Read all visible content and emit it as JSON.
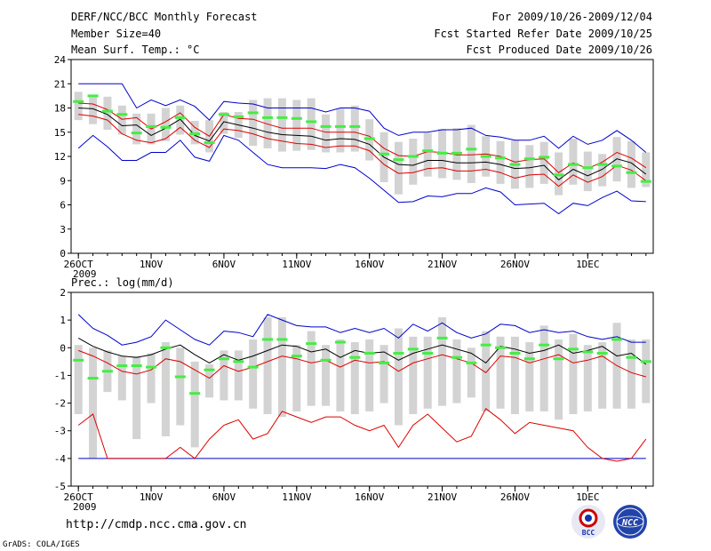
{
  "header": {
    "left": [
      "DERF/NCC/BCC Monthly Forecast",
      "Member Size=40",
      "Mean Surf. Temp.: °C"
    ],
    "right": [
      "For 2009/10/26-2009/12/04",
      "Fcst Started Refer Date 2009/10/25",
      "Fcst Produced Date 2009/10/26"
    ]
  },
  "footer": {
    "url": "http://cmdp.ncc.cma.gov.cn",
    "credit": "GrADS: COLA/IGES"
  },
  "logos": {
    "left": "BCC",
    "right": "NCC"
  },
  "colors": {
    "box": "#d3d3d3",
    "median": "#44ee44",
    "mean": "#000000",
    "spread": "#dd0000",
    "extreme": "#0000cc"
  },
  "chart_data": [
    {
      "type": "box",
      "title": "Mean Surf. Temp.: °C",
      "ylim": [
        0,
        24
      ],
      "yticks": [
        0,
        3,
        6,
        9,
        12,
        15,
        18,
        21,
        24
      ],
      "x_tick_labels": [
        "26OCT",
        "1NOV",
        "6NOV",
        "11NOV",
        "16NOV",
        "21NOV",
        "26NOV",
        "1DEC"
      ],
      "x_tick_days": [
        0,
        5,
        10,
        15,
        20,
        25,
        30,
        35
      ],
      "year_label": "2009",
      "days": 40,
      "mean": [
        18.0,
        17.9,
        17.2,
        15.8,
        15.9,
        14.6,
        15.5,
        16.6,
        14.6,
        13.9,
        16.3,
        15.9,
        15.5,
        15.0,
        14.7,
        14.6,
        14.5,
        14.0,
        14.2,
        14.1,
        13.5,
        11.9,
        11.0,
        10.9,
        11.5,
        11.5,
        11.2,
        11.2,
        11.3,
        11.0,
        10.5,
        10.6,
        10.9,
        9.1,
        10.4,
        9.6,
        10.4,
        11.7,
        11.2,
        9.8
      ],
      "median": [
        18.8,
        19.5,
        17.6,
        17.2,
        14.9,
        15.7,
        15.6,
        16.8,
        14.8,
        13.7,
        17.2,
        16.9,
        17.4,
        16.8,
        16.8,
        16.7,
        16.3,
        15.7,
        15.7,
        15.7,
        14.2,
        12.3,
        11.6,
        12.0,
        12.7,
        12.4,
        12.4,
        12.9,
        12.0,
        11.8,
        11.0,
        11.7,
        11.9,
        9.7,
        11.0,
        10.6,
        11.0,
        10.8,
        10.0,
        8.9
      ],
      "upper": [
        18.6,
        18.5,
        17.8,
        16.6,
        16.8,
        15.4,
        16.3,
        17.4,
        15.6,
        14.5,
        17.2,
        16.7,
        16.6,
        16.0,
        15.5,
        15.5,
        15.5,
        15.0,
        15.0,
        15.0,
        14.5,
        13.0,
        12.1,
        12.0,
        12.6,
        12.5,
        12.2,
        12.2,
        12.3,
        12.0,
        11.3,
        11.6,
        11.7,
        10.0,
        11.2,
        10.5,
        11.3,
        12.5,
        11.8,
        10.6
      ],
      "lower": [
        17.2,
        17.0,
        16.5,
        14.8,
        14.0,
        13.7,
        14.2,
        15.6,
        14.0,
        13.1,
        15.4,
        15.2,
        14.8,
        14.2,
        13.9,
        13.6,
        13.5,
        13.1,
        13.3,
        13.3,
        12.7,
        11.0,
        9.9,
        10.0,
        10.5,
        10.6,
        10.2,
        10.2,
        10.4,
        10.0,
        9.3,
        9.7,
        9.8,
        8.3,
        9.7,
        8.8,
        9.5,
        10.9,
        10.3,
        9.0
      ],
      "max": [
        21.0,
        21.0,
        21.0,
        21.0,
        18.0,
        19.0,
        18.3,
        19.0,
        18.2,
        16.5,
        18.8,
        18.6,
        18.5,
        18.0,
        18.0,
        18.0,
        18.0,
        17.5,
        18.0,
        18.0,
        17.6,
        15.5,
        14.6,
        15.0,
        15.0,
        15.3,
        15.3,
        15.5,
        14.6,
        14.4,
        14.0,
        14.0,
        14.5,
        13.0,
        14.5,
        13.5,
        14.0,
        15.2,
        14.0,
        12.5
      ],
      "min": [
        13.0,
        14.6,
        13.2,
        11.5,
        11.5,
        12.5,
        12.5,
        14.0,
        11.9,
        11.4,
        14.6,
        14.0,
        12.5,
        11.0,
        10.6,
        10.6,
        10.6,
        10.5,
        11.0,
        10.6,
        9.3,
        7.8,
        6.3,
        6.4,
        7.1,
        7.0,
        7.4,
        7.4,
        8.1,
        7.6,
        6.0,
        6.1,
        6.2,
        4.9,
        6.2,
        5.9,
        6.9,
        7.7,
        6.5,
        6.4
      ],
      "box_top": [
        20.0,
        19.5,
        19.4,
        18.3,
        17.3,
        17.3,
        18.0,
        18.3,
        16.4,
        16.5,
        17.5,
        17.5,
        19.0,
        19.2,
        19.2,
        19.0,
        19.2,
        17.2,
        17.9,
        18.3,
        16.6,
        15.0,
        13.8,
        14.2,
        14.9,
        15.4,
        15.5,
        15.9,
        14.5,
        13.9,
        14.0,
        13.4,
        13.8,
        12.5,
        14.2,
        12.6,
        12.3,
        14.4,
        13.9,
        12.5
      ],
      "box_bottom": [
        16.5,
        16.0,
        15.3,
        14.7,
        13.5,
        13.5,
        13.9,
        14.7,
        13.5,
        12.5,
        14.8,
        14.3,
        13.3,
        13.0,
        12.6,
        12.7,
        12.8,
        12.5,
        12.5,
        12.6,
        11.5,
        8.8,
        7.3,
        8.5,
        9.5,
        9.3,
        9.1,
        8.7,
        9.5,
        8.6,
        8.0,
        8.1,
        8.6,
        7.2,
        8.5,
        7.7,
        8.3,
        8.9,
        8.1,
        8.2
      ]
    },
    {
      "type": "box",
      "title": "Prec.: log(mm/d)",
      "ylim": [
        -5,
        2
      ],
      "yticks": [
        -5,
        -4,
        -3,
        -2,
        -1,
        0,
        1,
        2
      ],
      "x_tick_labels": [
        "26OCT",
        "1NOV",
        "6NOV",
        "11NOV",
        "16NOV",
        "21NOV",
        "26NOV",
        "1DEC"
      ],
      "x_tick_days": [
        0,
        5,
        10,
        15,
        20,
        25,
        30,
        35
      ],
      "year_label": "2009",
      "days": 40,
      "mean": [
        0.35,
        0.05,
        -0.15,
        -0.3,
        -0.35,
        -0.25,
        -0.05,
        0.1,
        -0.25,
        -0.55,
        -0.25,
        -0.45,
        -0.3,
        -0.1,
        0.1,
        0.05,
        -0.15,
        -0.05,
        -0.35,
        -0.1,
        -0.2,
        -0.15,
        -0.45,
        -0.2,
        -0.05,
        0.1,
        -0.05,
        -0.2,
        -0.55,
        0.05,
        -0.05,
        -0.2,
        -0.1,
        0.1,
        -0.2,
        -0.1,
        0.05,
        -0.3,
        -0.2,
        -0.6
      ],
      "median": [
        -0.45,
        -1.1,
        -0.85,
        -0.65,
        -0.65,
        -0.7,
        0.0,
        -1.05,
        -1.65,
        -0.8,
        -0.4,
        -0.5,
        -0.7,
        0.3,
        0.3,
        -0.3,
        0.15,
        -0.45,
        0.2,
        -0.35,
        -0.2,
        -0.55,
        -0.2,
        -0.05,
        -0.2,
        0.35,
        -0.35,
        -0.55,
        0.1,
        0.0,
        -0.2,
        -0.4,
        0.1,
        -0.4,
        -0.05,
        -0.15,
        -0.2,
        0.3,
        -0.35,
        -0.5
      ],
      "upper": [
        -0.1,
        -0.3,
        -0.55,
        -0.85,
        -0.95,
        -0.8,
        -0.4,
        -0.5,
        -0.8,
        -1.1,
        -0.65,
        -0.85,
        -0.7,
        -0.5,
        -0.3,
        -0.4,
        -0.55,
        -0.45,
        -0.7,
        -0.45,
        -0.55,
        -0.5,
        -0.85,
        -0.55,
        -0.4,
        -0.25,
        -0.4,
        -0.55,
        -0.9,
        -0.3,
        -0.35,
        -0.55,
        -0.4,
        -0.25,
        -0.55,
        -0.45,
        -0.3,
        -0.65,
        -0.9,
        -1.05
      ],
      "lower": [
        -2.8,
        -2.4,
        -4.0,
        -4.0,
        -4.0,
        -4.0,
        -4.0,
        -3.6,
        -4.0,
        -3.3,
        -2.8,
        -2.6,
        -3.3,
        -3.1,
        -2.3,
        -2.5,
        -2.7,
        -2.5,
        -2.5,
        -2.8,
        -3.0,
        -2.8,
        -3.6,
        -2.8,
        -2.4,
        -2.9,
        -3.4,
        -3.2,
        -2.2,
        -2.6,
        -3.1,
        -2.7,
        -2.8,
        -2.9,
        -3.0,
        -3.6,
        -4.0,
        -4.1,
        -4.0,
        -3.3
      ],
      "max": [
        1.2,
        0.7,
        0.45,
        0.1,
        0.2,
        0.4,
        1.0,
        0.65,
        0.3,
        0.1,
        0.6,
        0.55,
        0.4,
        1.2,
        1.0,
        0.8,
        0.75,
        0.75,
        0.55,
        0.7,
        0.55,
        0.7,
        0.35,
        0.85,
        0.6,
        0.9,
        0.55,
        0.35,
        0.5,
        0.85,
        0.8,
        0.55,
        0.65,
        0.55,
        0.6,
        0.4,
        0.3,
        0.4,
        0.2,
        0.2
      ],
      "min": [
        -4.0,
        -4.0,
        -4.0,
        -4.0,
        -4.0,
        -4.0,
        -4.0,
        -4.0,
        -4.0,
        -4.0,
        -4.0,
        -4.0,
        -4.0,
        -4.0,
        -4.0,
        -4.0,
        -4.0,
        -4.0,
        -4.0,
        -4.0,
        -4.0,
        -4.0,
        -4.0,
        -4.0,
        -4.0,
        -4.0,
        -4.0,
        -4.0,
        -4.0,
        -4.0,
        -4.0,
        -4.0,
        -4.0,
        -4.0,
        -4.0,
        -4.0,
        -4.0,
        -4.0,
        -4.0,
        -4.0
      ],
      "box_top": [
        0.1,
        0.0,
        -0.1,
        -0.3,
        -0.3,
        -0.2,
        0.2,
        0.0,
        -0.5,
        -0.6,
        -0.1,
        -0.1,
        0.3,
        1.1,
        1.1,
        0.1,
        0.6,
        0.1,
        0.3,
        0.2,
        0.3,
        0.1,
        0.7,
        0.4,
        0.4,
        1.1,
        0.3,
        0.0,
        0.6,
        0.4,
        0.4,
        0.2,
        0.8,
        0.3,
        0.5,
        0.1,
        0.2,
        0.9,
        0.3,
        0.3
      ],
      "box_bottom": [
        -2.4,
        -4.0,
        -1.6,
        -1.9,
        -3.3,
        -2.0,
        -3.2,
        -2.8,
        -3.6,
        -1.8,
        -1.9,
        -1.9,
        -2.2,
        -2.4,
        -2.5,
        -2.3,
        -2.1,
        -2.1,
        -2.3,
        -2.4,
        -2.3,
        -2.0,
        -2.8,
        -2.4,
        -2.2,
        -2.1,
        -2.0,
        -1.8,
        -2.3,
        -2.2,
        -2.4,
        -2.3,
        -2.3,
        -2.6,
        -2.4,
        -2.3,
        -2.2,
        -2.2,
        -2.2,
        -2.0
      ]
    }
  ]
}
